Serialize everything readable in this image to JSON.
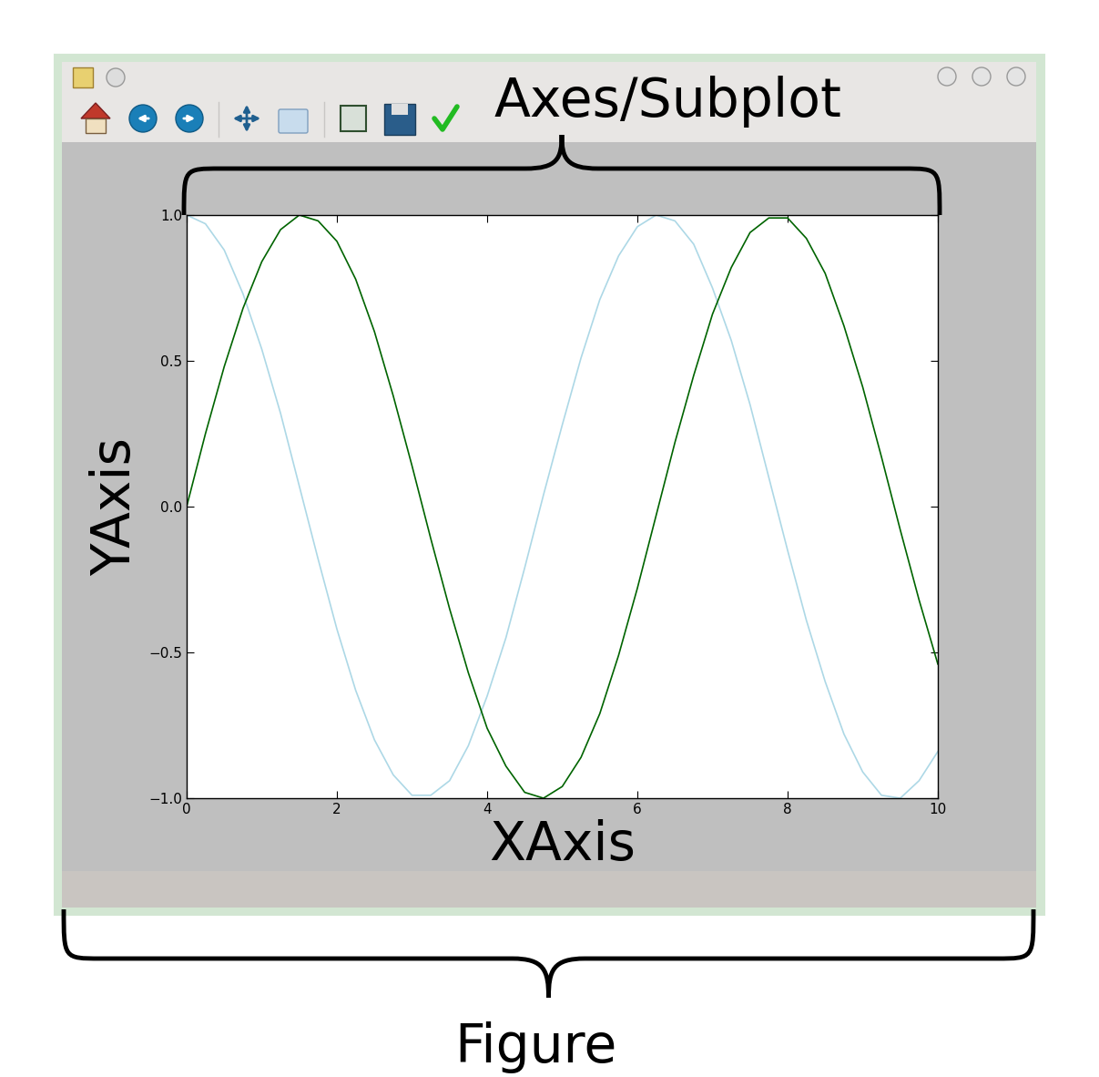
{
  "chart_data": {
    "type": "line",
    "x_label": "XAxis",
    "y_label": "YAxis",
    "x": [
      0,
      0.25,
      0.5,
      0.75,
      1,
      1.25,
      1.5,
      1.75,
      2,
      2.25,
      2.5,
      2.75,
      3,
      3.25,
      3.5,
      3.75,
      4,
      4.25,
      4.5,
      4.75,
      5,
      5.25,
      5.5,
      5.75,
      6,
      6.25,
      6.5,
      6.75,
      7,
      7.25,
      7.5,
      7.75,
      8,
      8.25,
      8.5,
      8.75,
      9,
      9.25,
      9.5,
      9.75,
      10
    ],
    "series": [
      {
        "color": "#add8e6",
        "values": [
          1.0,
          0.97,
          0.88,
          0.73,
          0.54,
          0.32,
          0.07,
          -0.18,
          -0.42,
          -0.63,
          -0.8,
          -0.92,
          -0.99,
          -0.99,
          -0.94,
          -0.82,
          -0.65,
          -0.45,
          -0.21,
          0.04,
          0.28,
          0.51,
          0.71,
          0.86,
          0.96,
          1.0,
          0.98,
          0.9,
          0.75,
          0.57,
          0.35,
          0.1,
          -0.15,
          -0.39,
          -0.6,
          -0.78,
          -0.91,
          -0.99,
          -1.0,
          -0.94,
          -0.84
        ]
      },
      {
        "color": "#006400",
        "values": [
          0.0,
          0.25,
          0.48,
          0.68,
          0.84,
          0.95,
          1.0,
          0.98,
          0.91,
          0.78,
          0.6,
          0.38,
          0.14,
          -0.11,
          -0.35,
          -0.57,
          -0.76,
          -0.89,
          -0.98,
          -1.0,
          -0.96,
          -0.86,
          -0.71,
          -0.51,
          -0.28,
          -0.03,
          0.22,
          0.45,
          0.66,
          0.82,
          0.94,
          0.99,
          0.99,
          0.92,
          0.8,
          0.62,
          0.41,
          0.17,
          -0.08,
          -0.32,
          -0.54
        ]
      }
    ],
    "xlim": [
      0,
      10
    ],
    "ylim": [
      -1,
      1
    ],
    "xticks": [
      0,
      2,
      4,
      6,
      8,
      10
    ],
    "yticks": [
      {
        "value": -1.0,
        "label": "−1.0"
      },
      {
        "value": -0.5,
        "label": "−0.5"
      },
      {
        "value": 0.0,
        "label": "0.0"
      },
      {
        "value": 0.5,
        "label": "0.5"
      },
      {
        "value": 1.0,
        "label": "1.0"
      }
    ]
  },
  "annotations": {
    "axes": "Axes/Subplot",
    "figure": "Figure"
  }
}
